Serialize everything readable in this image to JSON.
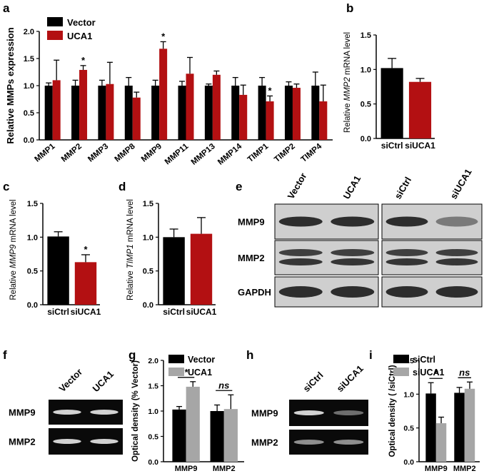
{
  "colors": {
    "black": "#000000",
    "red": "#b31012",
    "gray": "#a6a6a6"
  },
  "panel_letters": {
    "a": "a",
    "b": "b",
    "c": "c",
    "d": "d",
    "e": "e",
    "f": "f",
    "g": "g",
    "h": "h",
    "i": "i"
  },
  "chart_data": [
    {
      "id": "a",
      "type": "bar",
      "ylabel": "Relative MMPs expression",
      "ylim": [
        0,
        2.0
      ],
      "yticks": [
        "0.0",
        "0.5",
        "1.0",
        "1.5",
        "2.0"
      ],
      "categories": [
        "MMP1",
        "MMP2",
        "MMP3",
        "MMP8",
        "MMP9",
        "MMP11",
        "MMP13",
        "MMP14",
        "TIMP1",
        "TIMP2",
        "TIMP4"
      ],
      "series": [
        {
          "name": "Vector",
          "color": "#000000",
          "values": [
            1.0,
            1.0,
            1.0,
            1.0,
            1.0,
            1.0,
            1.0,
            1.0,
            1.0,
            1.0,
            1.0
          ],
          "err": [
            0.05,
            0.1,
            0.1,
            0.15,
            0.1,
            0.08,
            0.03,
            0.15,
            0.15,
            0.07,
            0.25
          ]
        },
        {
          "name": "UCA1",
          "color": "#b31012",
          "values": [
            1.1,
            1.29,
            1.03,
            0.78,
            1.68,
            1.22,
            1.2,
            0.83,
            0.71,
            0.96,
            0.71
          ],
          "err": [
            0.37,
            0.08,
            0.4,
            0.1,
            0.13,
            0.3,
            0.07,
            0.18,
            0.1,
            0.07,
            0.3
          ]
        }
      ],
      "stars": [
        "",
        "*",
        "",
        "",
        "*",
        "",
        "",
        "",
        "*",
        "",
        ""
      ],
      "legend": "top-left"
    },
    {
      "id": "b",
      "type": "bar",
      "ylabel_prefix": "Relative ",
      "ylabel_gene": "MMP2",
      "ylabel_suffix": " mRNA level",
      "ylim": [
        0,
        1.5
      ],
      "yticks": [
        "0.0",
        "0.5",
        "1.0",
        "1.5"
      ],
      "categories": [
        "siCtrl",
        "siUCA1"
      ],
      "values": [
        1.02,
        0.82
      ],
      "err": [
        0.14,
        0.05
      ],
      "colors": [
        "#000000",
        "#b31012"
      ],
      "stars": [
        "",
        ""
      ]
    },
    {
      "id": "c",
      "type": "bar",
      "ylabel_prefix": "Relative ",
      "ylabel_gene": "MMP9",
      "ylabel_suffix": " mRNA level",
      "ylim": [
        0,
        1.5
      ],
      "yticks": [
        "0.0",
        "0.5",
        "1.0",
        "1.5"
      ],
      "categories": [
        "siCtrl",
        "siUCA1"
      ],
      "values": [
        1.01,
        0.63
      ],
      "err": [
        0.07,
        0.11
      ],
      "colors": [
        "#000000",
        "#b31012"
      ],
      "stars": [
        "",
        "*"
      ]
    },
    {
      "id": "d",
      "type": "bar",
      "ylabel_prefix": "Relative ",
      "ylabel_gene": "TIMP1",
      "ylabel_suffix": " mRNA level",
      "ylim": [
        0,
        1.5
      ],
      "yticks": [
        "0.0",
        "0.5",
        "1.0",
        "1.5"
      ],
      "categories": [
        "siCtrl",
        "siUCA1"
      ],
      "values": [
        1.0,
        1.05
      ],
      "err": [
        0.12,
        0.24
      ],
      "colors": [
        "#000000",
        "#b31012"
      ],
      "stars": [
        "",
        ""
      ]
    },
    {
      "id": "g",
      "type": "bar",
      "ylabel": "Optical density (% Vector)",
      "ylim": [
        0,
        2.0
      ],
      "yticks": [
        "0.0",
        "0.5",
        "1.0",
        "1.5",
        "2.0"
      ],
      "categories": [
        "MMP9",
        "MMP2"
      ],
      "series": [
        {
          "name": "Vector",
          "color": "#000000",
          "values": [
            1.03,
            1.0
          ],
          "err": [
            0.06,
            0.12
          ]
        },
        {
          "name": "UCA1",
          "color": "#a6a6a6",
          "values": [
            1.48,
            1.04
          ],
          "err": [
            0.1,
            0.28
          ]
        }
      ],
      "sig": [
        "*",
        "ns"
      ],
      "legend": "top"
    },
    {
      "id": "i",
      "type": "bar",
      "ylabel": "Optical density ( /siCtrl)",
      "ylim": [
        0,
        1.5
      ],
      "yticks": [
        "0.0",
        "0.5",
        "1.0",
        "1.5"
      ],
      "categories": [
        "MMP9",
        "MMP2"
      ],
      "series": [
        {
          "name": "siCtrl",
          "color": "#000000",
          "values": [
            1.01,
            1.02
          ],
          "err": [
            0.16,
            0.08
          ]
        },
        {
          "name": "siUCA1",
          "color": "#a6a6a6",
          "values": [
            0.57,
            1.08
          ],
          "err": [
            0.09,
            0.1
          ]
        }
      ],
      "sig": [
        "*",
        "ns"
      ],
      "legend": "top"
    }
  ],
  "blot_e": {
    "lanes": [
      "Vector",
      "UCA1",
      "siCtrl",
      "siUCA1"
    ],
    "rows": [
      "MMP9",
      "MMP2",
      "GAPDH"
    ]
  },
  "gel_f": {
    "lanes": [
      "Vector",
      "UCA1"
    ],
    "rows": [
      "MMP9",
      "MMP2"
    ]
  },
  "gel_h": {
    "lanes": [
      "siCtrl",
      "siUCA1"
    ],
    "rows": [
      "MMP9",
      "MMP2"
    ]
  }
}
